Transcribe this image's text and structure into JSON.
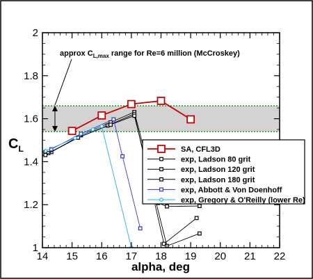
{
  "chart_data": {
    "type": "line",
    "xlabel": "alpha, deg",
    "ylabel": "C",
    "ylabel_sub": "L",
    "xlim": [
      14,
      22
    ],
    "ylim": [
      1,
      2
    ],
    "xticks": [
      14,
      15,
      16,
      17,
      18,
      19,
      20,
      21,
      22
    ],
    "yticks": [
      1,
      1.2,
      1.4,
      1.6,
      1.8,
      2
    ],
    "ytick_labels": [
      "1",
      "1.2",
      "1.4",
      "1.6",
      "1.8",
      "2"
    ],
    "grid": false,
    "band": {
      "y_low": 1.54,
      "y_high": 1.66,
      "color": "#d3d3d3",
      "edge_color": "#22aa22"
    },
    "annotation": {
      "text_pre": "approx C",
      "text_sub": "L,max",
      "text_post": " range for Re=6 million (McCroskey)"
    },
    "legend_position": "center-right",
    "series": [
      {
        "name": "SA, CFL3D",
        "color": "#cc0000",
        "marker": "square-large",
        "x": [
          15,
          16,
          17,
          18,
          19
        ],
        "y": [
          1.543,
          1.615,
          1.668,
          1.683,
          1.597
        ]
      },
      {
        "name": "exp, Ladson 80 grit",
        "color": "#000000",
        "marker": "square-small",
        "x": [
          14.0,
          14.3,
          15.3,
          16.3,
          17.1,
          17.9,
          18.2,
          19.3
        ],
        "y": [
          1.437,
          1.445,
          1.523,
          1.583,
          1.631,
          1.208,
          1.192,
          1.194
        ]
      },
      {
        "name": "exp, Ladson 120 grit",
        "color": "#000000",
        "marker": "square-small",
        "x": [
          14.2,
          15.2,
          16.2,
          17.1,
          18.1,
          19.2
        ],
        "y": [
          1.44,
          1.512,
          1.568,
          1.622,
          1.018,
          1.138
        ]
      },
      {
        "name": "exp, Ladson 180 grit",
        "color": "#000000",
        "marker": "square-small",
        "x": [
          14.1,
          15.2,
          16.3,
          17.1,
          18.2,
          19.3
        ],
        "y": [
          1.431,
          1.512,
          1.572,
          1.614,
          1.008,
          1.066
        ]
      },
      {
        "name": "exp, Abbott & Von Doenhoff",
        "color": "#3333cc",
        "marker": "square-small",
        "x": [
          14.3,
          15.3,
          16.4,
          16.7,
          17.3
        ],
        "y": [
          1.458,
          1.53,
          1.597,
          1.425,
          1.09
        ]
      },
      {
        "name": "exp, Gregory & O'Reilly (lower Re)",
        "color": "#22aaee",
        "marker": "circle-small",
        "x": [
          14.1,
          15.1,
          15.7,
          16.0,
          17.0
        ],
        "y": [
          1.45,
          1.51,
          1.55,
          1.565,
          1.0
        ]
      }
    ]
  }
}
